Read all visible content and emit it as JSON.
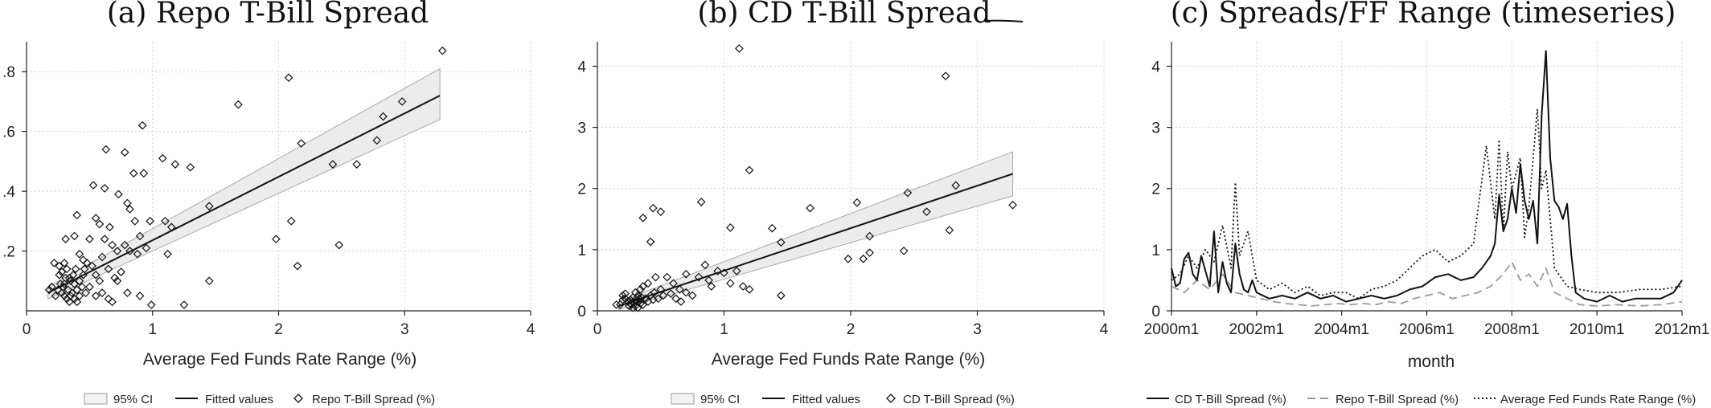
{
  "chart_data": [
    {
      "type": "scatter",
      "panel": "a",
      "title": "(a) Repo T-Bill Spread",
      "xlabel": "Average Fed Funds Rate Range (%)",
      "ylabel": "",
      "xlim": [
        0,
        4
      ],
      "ylim": [
        0,
        0.9
      ],
      "x_ticks": [
        "0",
        "1",
        "2",
        "3",
        "4"
      ],
      "y_ticks": [
        ".2",
        ".4",
        ".6",
        ".8"
      ],
      "grid": true,
      "legend_position": "bottom",
      "legend": [
        "95% CI",
        "Fitted values",
        "Repo T-Bill Spread (%)"
      ],
      "fit": {
        "x0": 0.17,
        "y0": 0.06,
        "x1": 3.28,
        "y1": 0.72,
        "lo0": 0.04,
        "hi0": 0.08,
        "lo1": 0.64,
        "hi1": 0.81
      },
      "points": [
        [
          3.3,
          0.87
        ],
        [
          2.08,
          0.78
        ],
        [
          2.98,
          0.7
        ],
        [
          2.83,
          0.65
        ],
        [
          2.78,
          0.57
        ],
        [
          1.68,
          0.69
        ],
        [
          2.18,
          0.56
        ],
        [
          2.43,
          0.49
        ],
        [
          2.62,
          0.49
        ],
        [
          2.1,
          0.3
        ],
        [
          1.98,
          0.24
        ],
        [
          2.48,
          0.22
        ],
        [
          2.15,
          0.15
        ],
        [
          1.45,
          0.35
        ],
        [
          1.45,
          0.1
        ],
        [
          1.25,
          0.02
        ],
        [
          1.08,
          0.51
        ],
        [
          1.18,
          0.49
        ],
        [
          1.3,
          0.48
        ],
        [
          0.92,
          0.62
        ],
        [
          0.63,
          0.54
        ],
        [
          0.78,
          0.53
        ],
        [
          0.93,
          0.46
        ],
        [
          1.1,
          0.3
        ],
        [
          1.12,
          0.19
        ],
        [
          1.15,
          0.28
        ],
        [
          0.98,
          0.3
        ],
        [
          0.73,
          0.39
        ],
        [
          0.8,
          0.36
        ],
        [
          0.85,
          0.46
        ],
        [
          0.53,
          0.42
        ],
        [
          0.62,
          0.41
        ],
        [
          0.4,
          0.32
        ],
        [
          0.55,
          0.31
        ],
        [
          0.58,
          0.29
        ],
        [
          0.66,
          0.28
        ],
        [
          0.82,
          0.34
        ],
        [
          0.86,
          0.3
        ],
        [
          0.9,
          0.25
        ],
        [
          0.99,
          0.02
        ],
        [
          0.5,
          0.24
        ],
        [
          0.62,
          0.24
        ],
        [
          0.68,
          0.22
        ],
        [
          0.72,
          0.2
        ],
        [
          0.78,
          0.22
        ],
        [
          0.82,
          0.2
        ],
        [
          0.88,
          0.19
        ],
        [
          0.95,
          0.21
        ],
        [
          0.38,
          0.25
        ],
        [
          0.31,
          0.24
        ],
        [
          0.22,
          0.16
        ],
        [
          0.26,
          0.15
        ],
        [
          0.3,
          0.16
        ],
        [
          0.42,
          0.19
        ],
        [
          0.45,
          0.17
        ],
        [
          0.48,
          0.16
        ],
        [
          0.52,
          0.15
        ],
        [
          0.55,
          0.12
        ],
        [
          0.58,
          0.1
        ],
        [
          0.6,
          0.18
        ],
        [
          0.65,
          0.14
        ],
        [
          0.7,
          0.11
        ],
        [
          0.75,
          0.13
        ],
        [
          0.8,
          0.06
        ],
        [
          0.9,
          0.05
        ],
        [
          0.35,
          0.1
        ],
        [
          0.38,
          0.09
        ],
        [
          0.4,
          0.07
        ],
        [
          0.42,
          0.05
        ],
        [
          0.28,
          0.06
        ],
        [
          0.3,
          0.05
        ],
        [
          0.32,
          0.04
        ],
        [
          0.34,
          0.03
        ],
        [
          0.29,
          0.08
        ],
        [
          0.33,
          0.07
        ],
        [
          0.36,
          0.06
        ],
        [
          0.25,
          0.07
        ],
        [
          0.27,
          0.09
        ],
        [
          0.2,
          0.08
        ],
        [
          0.18,
          0.07
        ],
        [
          0.23,
          0.05
        ],
        [
          0.31,
          0.11
        ],
        [
          0.37,
          0.12
        ],
        [
          0.44,
          0.08
        ],
        [
          0.47,
          0.06
        ],
        [
          0.5,
          0.08
        ],
        [
          0.55,
          0.05
        ],
        [
          0.6,
          0.06
        ],
        [
          0.65,
          0.04
        ],
        [
          0.68,
          0.03
        ],
        [
          0.28,
          0.13
        ],
        [
          0.32,
          0.14
        ],
        [
          0.34,
          0.11
        ],
        [
          0.26,
          0.12
        ],
        [
          0.3,
          0.09
        ],
        [
          0.35,
          0.05
        ],
        [
          0.38,
          0.04
        ],
        [
          0.4,
          0.03
        ],
        [
          0.42,
          0.1
        ],
        [
          0.45,
          0.12
        ],
        [
          0.39,
          0.14
        ],
        [
          0.46,
          0.14
        ],
        [
          0.72,
          0.1
        ]
      ]
    },
    {
      "type": "scatter",
      "panel": "b",
      "title": "(b) CD T-Bill Spread",
      "xlabel": "Average Fed Funds Rate Range (%)",
      "ylabel": "",
      "xlim": [
        0,
        4
      ],
      "ylim": [
        0,
        4.4
      ],
      "x_ticks": [
        "0",
        "1",
        "2",
        "3",
        "4"
      ],
      "y_ticks": [
        "0",
        "1",
        "2",
        "3",
        "4"
      ],
      "grid": true,
      "legend_position": "bottom",
      "legend": [
        "95% CI",
        "Fitted values",
        "CD T-Bill Spread (%)"
      ],
      "fit": {
        "x0": 0.17,
        "y0": 0.08,
        "x1": 3.28,
        "y1": 2.24,
        "lo0": 0.02,
        "hi0": 0.15,
        "lo1": 1.88,
        "hi1": 2.6
      },
      "points": [
        [
          1.12,
          4.29
        ],
        [
          2.75,
          3.84
        ],
        [
          1.2,
          2.3
        ],
        [
          2.83,
          2.05
        ],
        [
          3.28,
          1.73
        ],
        [
          2.45,
          1.93
        ],
        [
          2.05,
          1.77
        ],
        [
          1.68,
          1.68
        ],
        [
          2.6,
          1.62
        ],
        [
          0.82,
          1.78
        ],
        [
          1.38,
          1.35
        ],
        [
          1.05,
          1.36
        ],
        [
          0.44,
          1.68
        ],
        [
          0.5,
          1.62
        ],
        [
          0.36,
          1.52
        ],
        [
          0.42,
          1.13
        ],
        [
          2.15,
          1.22
        ],
        [
          2.78,
          1.32
        ],
        [
          2.42,
          0.98
        ],
        [
          1.45,
          1.12
        ],
        [
          1.0,
          0.62
        ],
        [
          1.15,
          0.4
        ],
        [
          1.05,
          0.45
        ],
        [
          1.2,
          0.35
        ],
        [
          1.45,
          0.25
        ],
        [
          1.98,
          0.85
        ],
        [
          2.1,
          0.85
        ],
        [
          2.15,
          0.95
        ],
        [
          0.7,
          0.6
        ],
        [
          0.8,
          0.55
        ],
        [
          0.88,
          0.5
        ],
        [
          0.95,
          0.65
        ],
        [
          0.55,
          0.55
        ],
        [
          0.6,
          0.45
        ],
        [
          0.65,
          0.35
        ],
        [
          0.7,
          0.3
        ],
        [
          0.75,
          0.25
        ],
        [
          0.5,
          0.35
        ],
        [
          0.45,
          0.3
        ],
        [
          0.42,
          0.25
        ],
        [
          0.38,
          0.2
        ],
        [
          0.3,
          0.3
        ],
        [
          0.32,
          0.25
        ],
        [
          0.34,
          0.35
        ],
        [
          0.36,
          0.4
        ],
        [
          0.28,
          0.22
        ],
        [
          0.3,
          0.18
        ],
        [
          0.32,
          0.15
        ],
        [
          0.34,
          0.12
        ],
        [
          0.36,
          0.1
        ],
        [
          0.26,
          0.12
        ],
        [
          0.24,
          0.15
        ],
        [
          0.22,
          0.2
        ],
        [
          0.2,
          0.18
        ],
        [
          0.18,
          0.1
        ],
        [
          0.25,
          0.08
        ],
        [
          0.27,
          0.1
        ],
        [
          0.29,
          0.14
        ],
        [
          0.31,
          0.16
        ],
        [
          0.33,
          0.2
        ],
        [
          0.35,
          0.22
        ],
        [
          0.4,
          0.15
        ],
        [
          0.44,
          0.18
        ],
        [
          0.48,
          0.2
        ],
        [
          0.52,
          0.25
        ],
        [
          0.58,
          0.28
        ],
        [
          0.62,
          0.2
        ],
        [
          0.66,
          0.15
        ],
        [
          0.15,
          0.1
        ],
        [
          0.2,
          0.25
        ],
        [
          0.22,
          0.28
        ],
        [
          0.32,
          0.05
        ],
        [
          0.3,
          0.08
        ],
        [
          0.28,
          0.05
        ],
        [
          0.26,
          0.18
        ],
        [
          0.4,
          0.45
        ],
        [
          0.46,
          0.55
        ],
        [
          0.85,
          0.75
        ],
        [
          0.9,
          0.4
        ],
        [
          1.1,
          0.65
        ]
      ]
    },
    {
      "type": "line",
      "panel": "c",
      "title": "(c) Spreads/FF Range (timeseries)",
      "xlabel": "month",
      "ylabel": "",
      "xlim": [
        2000,
        2012
      ],
      "ylim": [
        0,
        4.4
      ],
      "x_ticks": [
        "2000m1",
        "2002m1",
        "2004m1",
        "2006m1",
        "2008m1",
        "2010m1",
        "2012m1"
      ],
      "y_ticks": [
        "0",
        "1",
        "2",
        "3",
        "4"
      ],
      "grid": true,
      "legend_position": "bottom",
      "series": [
        {
          "name": "CD T-Bill Spread (%)",
          "style": "solid",
          "color": "#111111",
          "x": [
            2000.0,
            2000.1,
            2000.2,
            2000.3,
            2000.4,
            2000.5,
            2000.6,
            2000.7,
            2000.8,
            2000.9,
            2001.0,
            2001.1,
            2001.2,
            2001.3,
            2001.4,
            2001.5,
            2001.6,
            2001.7,
            2001.8,
            2001.9,
            2002.0,
            2002.3,
            2002.6,
            2002.9,
            2003.2,
            2003.5,
            2003.8,
            2004.1,
            2004.4,
            2004.7,
            2005.0,
            2005.3,
            2005.6,
            2005.9,
            2006.2,
            2006.5,
            2006.8,
            2007.1,
            2007.3,
            2007.5,
            2007.6,
            2007.7,
            2007.8,
            2007.9,
            2008.0,
            2008.1,
            2008.2,
            2008.3,
            2008.4,
            2008.5,
            2008.6,
            2008.7,
            2008.8,
            2008.9,
            2009.0,
            2009.1,
            2009.2,
            2009.3,
            2009.4,
            2009.5,
            2009.7,
            2010.0,
            2010.3,
            2010.6,
            2010.9,
            2011.2,
            2011.5,
            2011.8,
            2012.0
          ],
          "y": [
            0.7,
            0.4,
            0.45,
            0.85,
            0.95,
            0.6,
            0.5,
            0.9,
            0.65,
            0.4,
            1.3,
            0.3,
            0.8,
            0.45,
            0.3,
            1.1,
            0.6,
            0.35,
            0.3,
            0.5,
            0.3,
            0.2,
            0.25,
            0.2,
            0.3,
            0.2,
            0.25,
            0.15,
            0.2,
            0.25,
            0.2,
            0.25,
            0.35,
            0.4,
            0.55,
            0.6,
            0.5,
            0.55,
            0.7,
            0.9,
            1.1,
            1.9,
            1.3,
            1.5,
            2.0,
            1.6,
            2.4,
            1.8,
            1.5,
            1.8,
            1.1,
            3.2,
            4.25,
            2.5,
            1.8,
            1.7,
            1.5,
            1.75,
            0.9,
            0.3,
            0.2,
            0.15,
            0.25,
            0.15,
            0.2,
            0.2,
            0.2,
            0.3,
            0.5
          ]
        },
        {
          "name": "Repo T-Bill Spread (%)",
          "style": "dashed",
          "color": "#9a9a9a",
          "x": [
            2000.0,
            2000.3,
            2000.6,
            2000.9,
            2001.2,
            2001.5,
            2001.8,
            2002.1,
            2002.4,
            2002.7,
            2003.0,
            2003.3,
            2003.6,
            2003.9,
            2004.2,
            2004.5,
            2004.8,
            2005.1,
            2005.4,
            2005.7,
            2006.0,
            2006.3,
            2006.6,
            2006.9,
            2007.2,
            2007.5,
            2007.8,
            2008.0,
            2008.2,
            2008.4,
            2008.6,
            2008.8,
            2009.0,
            2009.3,
            2009.6,
            2010.0,
            2010.5,
            2011.0,
            2011.5,
            2012.0
          ],
          "y": [
            0.4,
            0.3,
            0.5,
            0.35,
            0.6,
            0.3,
            0.25,
            0.2,
            0.15,
            0.12,
            0.1,
            0.08,
            0.1,
            0.12,
            0.1,
            0.12,
            0.1,
            0.15,
            0.12,
            0.2,
            0.25,
            0.3,
            0.2,
            0.25,
            0.3,
            0.4,
            0.6,
            0.8,
            0.5,
            0.6,
            0.4,
            0.7,
            0.3,
            0.2,
            0.1,
            0.08,
            0.1,
            0.08,
            0.1,
            0.15
          ]
        },
        {
          "name": "Average Fed Funds Rate Range (%)",
          "style": "dotted",
          "color": "#111111",
          "x": [
            2000.0,
            2000.2,
            2000.4,
            2000.6,
            2000.8,
            2001.0,
            2001.2,
            2001.4,
            2001.5,
            2001.6,
            2001.8,
            2002.0,
            2002.3,
            2002.6,
            2002.9,
            2003.2,
            2003.5,
            2003.8,
            2004.1,
            2004.4,
            2004.7,
            2005.0,
            2005.3,
            2005.6,
            2005.9,
            2006.2,
            2006.5,
            2006.8,
            2007.1,
            2007.4,
            2007.6,
            2007.7,
            2007.8,
            2007.9,
            2008.0,
            2008.2,
            2008.3,
            2008.4,
            2008.6,
            2008.7,
            2008.8,
            2009.0,
            2009.3,
            2009.6,
            2010.0,
            2010.5,
            2011.0,
            2011.5,
            2012.0
          ],
          "y": [
            0.5,
            0.6,
            0.9,
            0.7,
            1.0,
            0.8,
            1.4,
            0.7,
            2.1,
            0.9,
            1.3,
            0.5,
            0.35,
            0.45,
            0.3,
            0.4,
            0.25,
            0.3,
            0.3,
            0.2,
            0.35,
            0.4,
            0.5,
            0.7,
            0.9,
            1.0,
            0.8,
            0.9,
            1.1,
            2.7,
            1.5,
            2.8,
            1.3,
            2.6,
            2.0,
            2.5,
            1.2,
            1.7,
            3.3,
            2.0,
            2.3,
            0.7,
            0.4,
            0.35,
            0.3,
            0.3,
            0.35,
            0.35,
            0.4
          ]
        }
      ]
    }
  ]
}
